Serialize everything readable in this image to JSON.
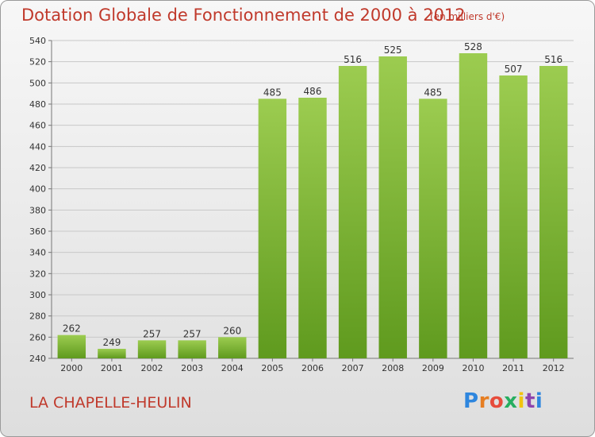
{
  "header": {
    "title": "Dotation Globale de Fonctionnement de 2000 à 2012",
    "unit": "(en milliers d'€)"
  },
  "footer": {
    "commune": "LA CHAPELLE-HEULIN",
    "brand": "Proxiti",
    "brand_colors": [
      "#2e86de",
      "#e67e22",
      "#e74c3c",
      "#27ae60",
      "#f1c40f",
      "#8e44ad",
      "#2e86de"
    ]
  },
  "colors": {
    "title": "#c0392b",
    "bar_top": "#9ccc50",
    "bar_bottom": "#5f9a1e"
  },
  "chart_data": {
    "type": "bar",
    "categories": [
      "2000",
      "2001",
      "2002",
      "2003",
      "2004",
      "2005",
      "2006",
      "2007",
      "2008",
      "2009",
      "2010",
      "2011",
      "2012"
    ],
    "values": [
      262,
      249,
      257,
      257,
      260,
      485,
      486,
      516,
      525,
      485,
      528,
      507,
      516
    ],
    "ylim": [
      240,
      540
    ],
    "yticks": [
      240,
      260,
      280,
      300,
      320,
      340,
      360,
      380,
      400,
      420,
      440,
      460,
      480,
      500,
      520,
      540
    ],
    "grid": true
  }
}
